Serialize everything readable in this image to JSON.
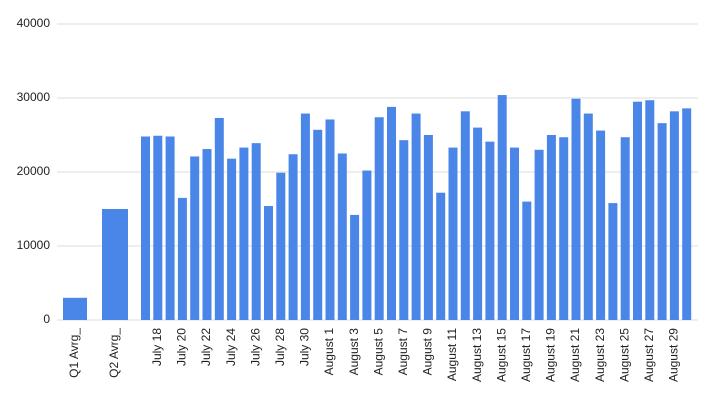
{
  "chart_data": {
    "type": "bar",
    "color": "#4a86e8",
    "grid": true,
    "categories": [
      "Q1 Avrg_",
      "Q2 Avrg_",
      null,
      "July 18",
      null,
      "July 20",
      null,
      "July 22",
      null,
      "July 24",
      null,
      "July 26",
      null,
      "July 28",
      null,
      "July 30",
      null,
      "August 1",
      null,
      "August 3",
      null,
      "August 5",
      null,
      "August 7",
      null,
      "August 9",
      null,
      "August 11",
      null,
      "August 13",
      null,
      "August 15",
      null,
      "August 17",
      null,
      "August 19",
      null,
      "August 21",
      null,
      "August 23",
      null,
      "August 25",
      null,
      "August 27",
      null,
      "August 29",
      null
    ],
    "values": [
      3000,
      15000,
      24800,
      24900,
      24800,
      16500,
      22100,
      23100,
      27300,
      21800,
      23300,
      23900,
      15400,
      19900,
      22400,
      27900,
      25700,
      27100,
      22500,
      14200,
      20200,
      27400,
      28800,
      24300,
      27900,
      25000,
      17200,
      23300,
      28200,
      26000,
      24100,
      30400,
      23300,
      16000,
      23000,
      25000,
      24700,
      29900,
      27900,
      25600,
      15800,
      24700,
      29500,
      29700,
      26600,
      28200,
      28600
    ],
    "ylim": [
      0,
      40000
    ],
    "yticks": [
      0,
      10000,
      20000,
      30000,
      40000
    ]
  }
}
